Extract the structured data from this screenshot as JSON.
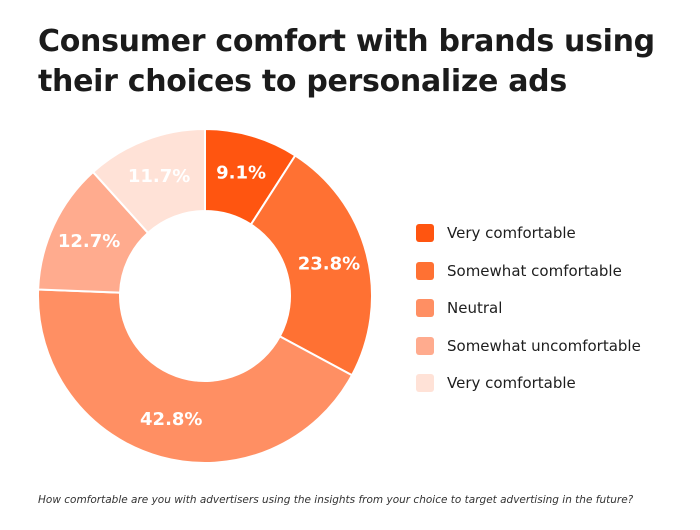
{
  "title_lines": [
    "Consumer comfort with brands using",
    "their choices to personalize ads"
  ],
  "footnote": "How comfortable are you with advertisers using the insights from your choice to target advertising in the future?",
  "chart_data": {
    "type": "pie",
    "variant": "donut",
    "title": "Consumer comfort with brands using their choices to personalize ads",
    "legend_placement": "right",
    "categories": [
      "Very comfortable",
      "Somewhat comfortable",
      "Neutral",
      "Somewhat uncomfortable",
      "Very comfortable"
    ],
    "values": [
      9.1,
      23.8,
      42.8,
      12.7,
      11.7
    ],
    "labels": [
      "9.1%",
      "23.8%",
      "42.8%",
      "12.7%",
      "11.7%"
    ],
    "colors": [
      "#ff5510",
      "#ff7133",
      "#ff8f63",
      "#ffab8e",
      "#ffe2d7"
    ],
    "label_colors": [
      "#ffffff",
      "#ffffff",
      "#ffffff",
      "#ffffff",
      "#ff5a1f"
    ]
  }
}
